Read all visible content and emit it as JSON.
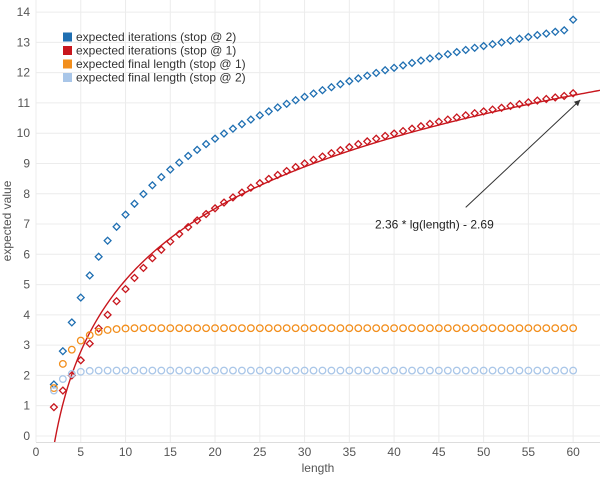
{
  "chart_data": {
    "type": "scatter",
    "xlabel": "length",
    "ylabel": "expected value",
    "xlim": [
      0,
      63
    ],
    "ylim": [
      -0.2,
      14.4
    ],
    "xticks": [
      0,
      5,
      10,
      15,
      20,
      25,
      30,
      35,
      40,
      45,
      50,
      55,
      60
    ],
    "yticks": [
      0,
      1,
      2,
      3,
      4,
      5,
      6,
      7,
      8,
      9,
      10,
      11,
      12,
      13,
      14
    ],
    "grid": true,
    "legend_position": "top-left",
    "series": [
      {
        "name": "expected iterations (stop @ 2)",
        "marker": "diamond",
        "color": "#1f6fb2",
        "x": [
          2,
          3,
          4,
          5,
          6,
          7,
          8,
          9,
          10,
          11,
          12,
          13,
          14,
          15,
          16,
          17,
          18,
          19,
          20,
          21,
          22,
          23,
          24,
          25,
          26,
          27,
          28,
          29,
          30,
          31,
          32,
          33,
          34,
          35,
          36,
          37,
          38,
          39,
          40,
          41,
          42,
          43,
          44,
          45,
          46,
          47,
          48,
          49,
          50,
          51,
          52,
          53,
          54,
          55,
          56,
          57,
          58,
          59,
          60
        ],
        "y": [
          1.7,
          2.8,
          3.75,
          4.57,
          5.3,
          5.92,
          6.45,
          6.91,
          7.31,
          7.67,
          7.99,
          8.28,
          8.55,
          8.8,
          9.03,
          9.25,
          9.45,
          9.64,
          9.82,
          9.99,
          10.15,
          10.3,
          10.45,
          10.59,
          10.72,
          10.85,
          10.97,
          11.09,
          11.2,
          11.31,
          11.42,
          11.52,
          11.62,
          11.72,
          11.81,
          11.9,
          11.99,
          12.08,
          12.16,
          12.24,
          12.32,
          12.4,
          12.47,
          12.54,
          12.61,
          12.68,
          12.75,
          12.82,
          12.88,
          12.94,
          13.0,
          13.06,
          13.12,
          13.18,
          13.24,
          13.29,
          13.35,
          13.4,
          13.75
        ]
      },
      {
        "name": "expected iterations (stop @ 1)",
        "marker": "diamond",
        "color": "#c8161d",
        "x": [
          2,
          3,
          4,
          5,
          6,
          7,
          8,
          9,
          10,
          11,
          12,
          13,
          14,
          15,
          16,
          17,
          18,
          19,
          20,
          21,
          22,
          23,
          24,
          25,
          26,
          27,
          28,
          29,
          30,
          31,
          32,
          33,
          34,
          35,
          36,
          37,
          38,
          39,
          40,
          41,
          42,
          43,
          44,
          45,
          46,
          47,
          48,
          49,
          50,
          51,
          52,
          53,
          54,
          55,
          56,
          57,
          58,
          59,
          60
        ],
        "y": [
          0.95,
          1.5,
          2.0,
          2.5,
          3.05,
          3.55,
          4.0,
          4.45,
          4.85,
          5.22,
          5.55,
          5.87,
          6.15,
          6.42,
          6.67,
          6.9,
          7.12,
          7.33,
          7.52,
          7.71,
          7.88,
          8.04,
          8.2,
          8.35,
          8.49,
          8.62,
          8.75,
          8.88,
          9.0,
          9.12,
          9.23,
          9.34,
          9.44,
          9.54,
          9.64,
          9.73,
          9.82,
          9.91,
          9.99,
          10.07,
          10.15,
          10.23,
          10.31,
          10.38,
          10.45,
          10.52,
          10.59,
          10.66,
          10.72,
          10.78,
          10.84,
          10.9,
          10.96,
          11.02,
          11.08,
          11.13,
          11.18,
          11.23,
          11.32
        ]
      },
      {
        "name": "expected final length (stop @ 1)",
        "marker": "circle",
        "color": "#f28e1c",
        "x": [
          2,
          3,
          4,
          5,
          6,
          7,
          8,
          9,
          10,
          11,
          12,
          13,
          14,
          15,
          16,
          17,
          18,
          19,
          20,
          21,
          22,
          23,
          24,
          25,
          26,
          27,
          28,
          29,
          30,
          31,
          32,
          33,
          34,
          35,
          36,
          37,
          38,
          39,
          40,
          41,
          42,
          43,
          44,
          45,
          46,
          47,
          48,
          49,
          50,
          51,
          52,
          53,
          54,
          55,
          56,
          57,
          58,
          59,
          60
        ],
        "y": [
          1.58,
          2.38,
          2.85,
          3.15,
          3.33,
          3.44,
          3.5,
          3.53,
          3.55,
          3.56,
          3.56,
          3.56,
          3.56,
          3.56,
          3.56,
          3.56,
          3.56,
          3.56,
          3.56,
          3.56,
          3.56,
          3.56,
          3.56,
          3.56,
          3.56,
          3.56,
          3.56,
          3.56,
          3.56,
          3.56,
          3.56,
          3.56,
          3.56,
          3.56,
          3.56,
          3.56,
          3.56,
          3.56,
          3.56,
          3.56,
          3.56,
          3.56,
          3.56,
          3.56,
          3.56,
          3.56,
          3.56,
          3.56,
          3.56,
          3.56,
          3.56,
          3.56,
          3.56,
          3.56,
          3.56,
          3.56,
          3.56,
          3.56,
          3.56
        ]
      },
      {
        "name": "expected final length (stop @ 2)",
        "marker": "circle",
        "color": "#a9c6e8",
        "x": [
          2,
          3,
          4,
          5,
          6,
          7,
          8,
          9,
          10,
          11,
          12,
          13,
          14,
          15,
          16,
          17,
          18,
          19,
          20,
          21,
          22,
          23,
          24,
          25,
          26,
          27,
          28,
          29,
          30,
          31,
          32,
          33,
          34,
          35,
          36,
          37,
          38,
          39,
          40,
          41,
          42,
          43,
          44,
          45,
          46,
          47,
          48,
          49,
          50,
          51,
          52,
          53,
          54,
          55,
          56,
          57,
          58,
          59,
          60
        ],
        "y": [
          1.5,
          1.88,
          2.05,
          2.12,
          2.15,
          2.16,
          2.16,
          2.16,
          2.16,
          2.16,
          2.16,
          2.16,
          2.16,
          2.16,
          2.16,
          2.16,
          2.16,
          2.16,
          2.16,
          2.16,
          2.16,
          2.16,
          2.16,
          2.16,
          2.16,
          2.16,
          2.16,
          2.16,
          2.16,
          2.16,
          2.16,
          2.16,
          2.16,
          2.16,
          2.16,
          2.16,
          2.16,
          2.16,
          2.16,
          2.16,
          2.16,
          2.16,
          2.16,
          2.16,
          2.16,
          2.16,
          2.16,
          2.16,
          2.16,
          2.16,
          2.16,
          2.16,
          2.16,
          2.16,
          2.16,
          2.16,
          2.16,
          2.16,
          2.16
        ]
      }
    ],
    "fit_curve": {
      "color": "#c8161d",
      "coefficient": 2.36,
      "offset": -2.69,
      "x_range": [
        1.7,
        63
      ]
    },
    "annotation": {
      "text": "2.36 * lg(length) - 2.69",
      "text_anchor": {
        "x": 44.5,
        "y": 6.98
      },
      "arrow_from": {
        "x": 48.0,
        "y": 7.55
      },
      "arrow_to": {
        "x": 60.8,
        "y": 11.1
      }
    }
  }
}
